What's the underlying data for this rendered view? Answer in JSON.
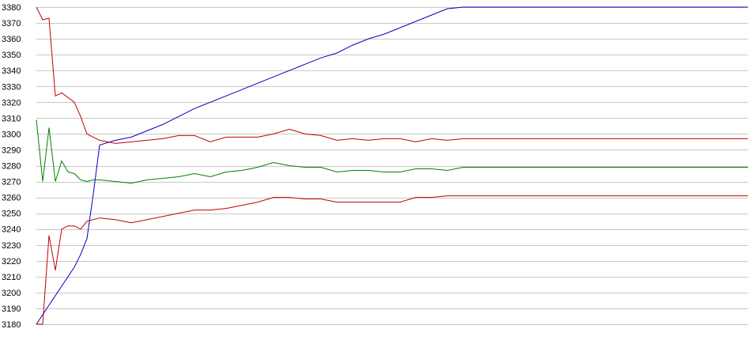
{
  "chart_data": {
    "type": "line",
    "title": "",
    "xlabel": "",
    "ylabel": "",
    "ylim": [
      3180,
      3380
    ],
    "yticks": [
      3380,
      3370,
      3360,
      3350,
      3340,
      3330,
      3320,
      3310,
      3300,
      3290,
      3280,
      3270,
      3260,
      3250,
      3240,
      3230,
      3220,
      3210,
      3200,
      3190,
      3180
    ],
    "grid": true,
    "legend": "none",
    "x": [
      0,
      2,
      4,
      6,
      8,
      10,
      12,
      14,
      16,
      18,
      20,
      25,
      30,
      35,
      40,
      45,
      50,
      55,
      60,
      65,
      70,
      75,
      80,
      85,
      90,
      95,
      100,
      105,
      110,
      115,
      120,
      125,
      130,
      135,
      140,
      145,
      150,
      155,
      160,
      165,
      170,
      175,
      180,
      185,
      190,
      195,
      200,
      205,
      210,
      215,
      220,
      225
    ],
    "series": [
      {
        "color": "#0000c0",
        "values": [
          3180,
          3186,
          3192,
          3198,
          3204,
          3210,
          3216,
          3224,
          3234,
          3262,
          3293,
          3296,
          3298,
          3302,
          3306,
          3311,
          3316,
          3320,
          3324,
          3328,
          3332,
          3336,
          3340,
          3344,
          3348,
          3351,
          3356,
          3360,
          3363,
          3367,
          3371,
          3375,
          3379,
          3380,
          3380,
          3380,
          3380,
          3380,
          3380,
          3380,
          3380,
          3380,
          3380,
          3380,
          3380,
          3380,
          3380,
          3380,
          3380,
          3380,
          3380,
          3380
        ]
      },
      {
        "color": "#c00000",
        "values": [
          3380,
          3372,
          3373,
          3324,
          3326,
          3323,
          3320,
          3311,
          3300,
          3298,
          3296,
          3294,
          3295,
          3296,
          3297,
          3299,
          3299,
          3295,
          3298,
          3298,
          3298,
          3300,
          3303,
          3300,
          3299,
          3296,
          3297,
          3296,
          3297,
          3297,
          3295,
          3297,
          3296,
          3297,
          3297,
          3297,
          3297,
          3297,
          3297,
          3297,
          3297,
          3297,
          3297,
          3297,
          3297,
          3297,
          3297,
          3297,
          3297,
          3297,
          3297,
          3297
        ]
      },
      {
        "color": "#008000",
        "values": [
          3309,
          3270,
          3304,
          3270,
          3283,
          3276,
          3275,
          3271,
          3270,
          3271,
          3271,
          3270,
          3269,
          3271,
          3272,
          3273,
          3275,
          3273,
          3276,
          3277,
          3279,
          3282,
          3280,
          3279,
          3279,
          3276,
          3277,
          3277,
          3276,
          3276,
          3278,
          3278,
          3277,
          3279,
          3279,
          3279,
          3279,
          3279,
          3279,
          3279,
          3279,
          3279,
          3279,
          3279,
          3279,
          3279,
          3279,
          3279,
          3279,
          3279,
          3279,
          3279
        ]
      },
      {
        "color": "#c00000",
        "values": [
          3180,
          3180,
          3236,
          3214,
          3240,
          3242,
          3242,
          3240,
          3245,
          3246,
          3247,
          3246,
          3244,
          3246,
          3248,
          3250,
          3252,
          3252,
          3253,
          3255,
          3257,
          3260,
          3260,
          3259,
          3259,
          3257,
          3257,
          3257,
          3257,
          3257,
          3260,
          3260,
          3261,
          3261,
          3261,
          3261,
          3261,
          3261,
          3261,
          3261,
          3261,
          3261,
          3261,
          3261,
          3261,
          3261,
          3261,
          3261,
          3261,
          3261,
          3261,
          3261
        ]
      }
    ]
  }
}
